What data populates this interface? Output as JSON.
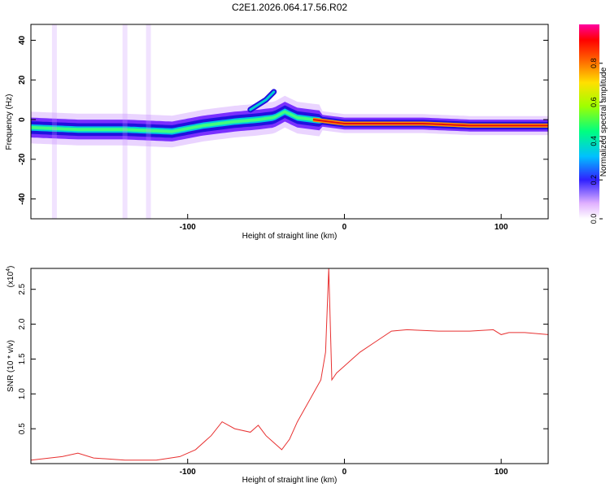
{
  "title": "C2E1.2026.064.17.56.R02",
  "chart_data": [
    {
      "type": "heatmap",
      "xlabel": "Height of straight line (km)",
      "ylabel": "Frequency (Hz)",
      "xlim": [
        -200,
        130
      ],
      "ylim": [
        -50,
        48
      ],
      "xticks": [
        -100,
        0,
        100
      ],
      "yticks": [
        -40,
        -20,
        0,
        20,
        40
      ],
      "ridge": [
        {
          "x": -200,
          "y": -4
        },
        {
          "x": -170,
          "y": -5
        },
        {
          "x": -140,
          "y": -5
        },
        {
          "x": -110,
          "y": -6
        },
        {
          "x": -90,
          "y": -3
        },
        {
          "x": -70,
          "y": -1
        },
        {
          "x": -55,
          "y": 0
        },
        {
          "x": -45,
          "y": 1
        },
        {
          "x": -38,
          "y": 4
        },
        {
          "x": -30,
          "y": 1
        },
        {
          "x": -20,
          "y": 0
        },
        {
          "x": -10,
          "y": -1
        },
        {
          "x": 0,
          "y": -2
        },
        {
          "x": 20,
          "y": -2
        },
        {
          "x": 50,
          "y": -2
        },
        {
          "x": 80,
          "y": -3
        },
        {
          "x": 100,
          "y": -3
        },
        {
          "x": 130,
          "y": -3
        }
      ],
      "branch": [
        {
          "x": -60,
          "y": 5
        },
        {
          "x": -50,
          "y": 10
        },
        {
          "x": -45,
          "y": 14
        }
      ]
    },
    {
      "type": "colorbar",
      "label": "Normalized spectral amplitude",
      "range": [
        0.0,
        1.0
      ],
      "ticks": [
        "0.0",
        "0.2",
        "0.4",
        "0.6",
        "0.8"
      ],
      "tick_values": [
        0.0,
        0.2,
        0.4,
        0.6,
        0.8
      ]
    },
    {
      "type": "line",
      "xlabel": "Height of straight line (km)",
      "ylabel": "SNR (10 * v/v)",
      "scale_note": "(x10",
      "scale_exp": "4",
      "scale_close": ")",
      "color": "#e83030",
      "xlim": [
        -200,
        130
      ],
      "ylim": [
        0,
        2.8
      ],
      "xticks": [
        -100,
        0,
        100
      ],
      "yticks": [
        0.5,
        1.0,
        1.5,
        2.0,
        2.5
      ],
      "ytick_labels": [
        "0.5",
        "1.0",
        "1.5",
        "2.0",
        "2.5"
      ],
      "x": [
        -200,
        -180,
        -170,
        -160,
        -140,
        -120,
        -105,
        -95,
        -85,
        -78,
        -70,
        -60,
        -55,
        -50,
        -45,
        -40,
        -35,
        -30,
        -25,
        -20,
        -15,
        -12,
        -10,
        -8,
        -5,
        0,
        5,
        10,
        20,
        30,
        40,
        60,
        80,
        95,
        100,
        105,
        115,
        130
      ],
      "y": [
        0.05,
        0.1,
        0.15,
        0.08,
        0.05,
        0.05,
        0.1,
        0.2,
        0.4,
        0.6,
        0.5,
        0.45,
        0.55,
        0.4,
        0.3,
        0.2,
        0.35,
        0.6,
        0.8,
        1.0,
        1.2,
        1.6,
        2.8,
        1.2,
        1.3,
        1.4,
        1.5,
        1.6,
        1.75,
        1.9,
        1.92,
        1.9,
        1.9,
        1.92,
        1.85,
        1.88,
        1.88,
        1.85
      ]
    }
  ]
}
